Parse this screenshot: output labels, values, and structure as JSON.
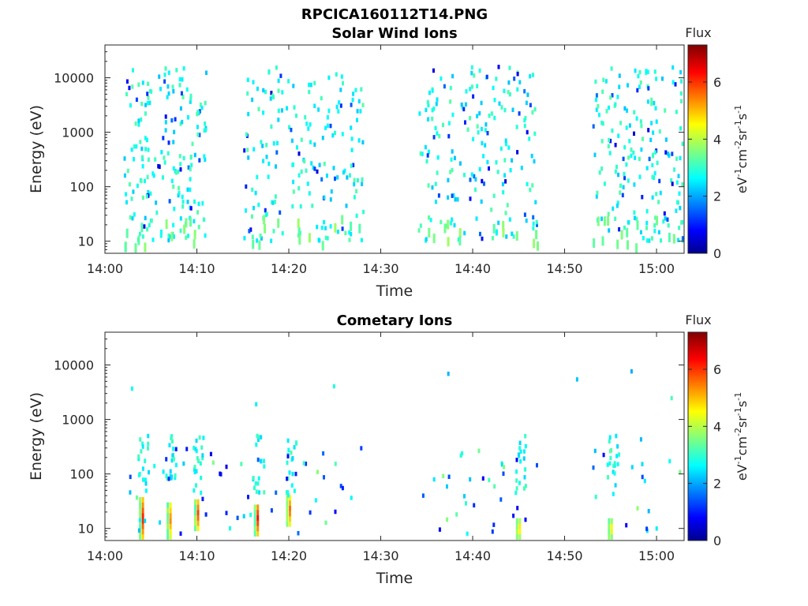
{
  "figure": {
    "title": "RPCICA160112T14.PNG"
  },
  "chart_data": [
    {
      "type": "heatmap",
      "title": "Solar Wind Ions",
      "xlabel": "Time",
      "ylabel": "Energy (eV)",
      "y_scale": "log",
      "xlim": [
        "14:00",
        "15:03"
      ],
      "ylim": [
        6,
        40000
      ],
      "x_ticks": [
        "14:00",
        "14:10",
        "14:20",
        "14:30",
        "14:40",
        "14:50",
        "15:00"
      ],
      "y_ticks": [
        "10",
        "100",
        "1000",
        "10000"
      ],
      "colorbar": {
        "title": "Flux",
        "label": "eV-1cm-2sr-1s-1",
        "range": [
          0,
          7.3
        ],
        "ticks": [
          "0",
          "2",
          "4",
          "6"
        ],
        "colormap": "jet"
      },
      "data_intervals": [
        [
          "14:02",
          "14:11"
        ],
        [
          "14:15",
          "14:28"
        ],
        [
          "14:34",
          "14:47"
        ],
        [
          "14:53",
          "15:03"
        ]
      ],
      "clusters": [
        {
          "time": "14:03-14:10",
          "energy_eV": [
            150,
            1200
          ],
          "flux": [
            2.3,
            3.2
          ]
        },
        {
          "time": "14:16-14:27",
          "energy_eV": [
            150,
            1500
          ],
          "flux": [
            2.3,
            3.2
          ]
        },
        {
          "time": "14:35-14:47",
          "energy_eV": [
            150,
            1500
          ],
          "flux": [
            2.3,
            3.2
          ]
        },
        {
          "time": "14:54-15:02",
          "energy_eV": [
            150,
            1500
          ],
          "flux": [
            2.3,
            3.2
          ]
        }
      ]
    },
    {
      "type": "heatmap",
      "title": "Cometary Ions",
      "xlabel": "Time",
      "ylabel": "Energy (eV)",
      "y_scale": "log",
      "xlim": [
        "14:00",
        "15:03"
      ],
      "ylim": [
        6,
        40000
      ],
      "x_ticks": [
        "14:00",
        "14:10",
        "14:20",
        "14:30",
        "14:40",
        "14:50",
        "15:00"
      ],
      "y_ticks": [
        "10",
        "100",
        "1000",
        "10000"
      ],
      "colorbar": {
        "title": "Flux",
        "label": "eV-1cm-2sr-1s-1",
        "range": [
          0,
          7.3
        ],
        "ticks": [
          "0",
          "2",
          "4",
          "6"
        ],
        "colormap": "jet"
      },
      "bursts": [
        {
          "time": "14:04",
          "energy_eV": [
            7,
            35
          ],
          "peak_flux": 6.3
        },
        {
          "time": "14:07",
          "energy_eV": [
            7,
            30
          ],
          "peak_flux": 5.5
        },
        {
          "time": "14:10",
          "energy_eV": [
            10,
            35
          ],
          "peak_flux": 6.0
        },
        {
          "time": "14:16.5",
          "energy_eV": [
            8,
            30
          ],
          "peak_flux": 6.3
        },
        {
          "time": "14:20",
          "energy_eV": [
            12,
            40
          ],
          "peak_flux": 5.7
        },
        {
          "time": "14:45",
          "energy_eV": [
            7,
            14
          ],
          "peak_flux": 5.0
        },
        {
          "time": "14:55",
          "energy_eV": [
            7,
            14
          ],
          "peak_flux": 4.8
        }
      ]
    }
  ]
}
